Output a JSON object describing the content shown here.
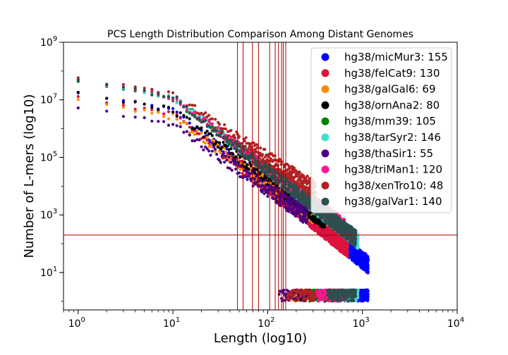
{
  "chart_data": {
    "type": "scatter",
    "title": "PCS Length Distribution Comparison Among Distant Genomes",
    "xlabel": "Length (log10)",
    "ylabel": "Number of L-mers (log10)",
    "xscale": "log",
    "yscale": "log",
    "xlim": [
      0.7,
      10000
    ],
    "ylim": [
      0.5,
      1000000000
    ],
    "x_ticks": [
      {
        "value": 1,
        "base": "10",
        "exp": "0"
      },
      {
        "value": 10,
        "base": "10",
        "exp": "1"
      },
      {
        "value": 100,
        "base": "10",
        "exp": "2"
      },
      {
        "value": 1000,
        "base": "10",
        "exp": "3"
      },
      {
        "value": 10000,
        "base": "10",
        "exp": "4"
      }
    ],
    "y_ticks": [
      {
        "value": 10,
        "base": "10",
        "exp": "1"
      },
      {
        "value": 1000,
        "base": "10",
        "exp": "3"
      },
      {
        "value": 100000,
        "base": "10",
        "exp": "5"
      },
      {
        "value": 10000000,
        "base": "10",
        "exp": "7"
      },
      {
        "value": 1000000000,
        "base": "10",
        "exp": "9"
      }
    ],
    "legend_position": "top-right",
    "threshold_line_color": "#b00000",
    "horizontal_threshold": 200,
    "series": [
      {
        "name": "hg38/micMur3: 155",
        "threshold": 155,
        "color": "#0000ff",
        "y1": 17000000.0,
        "slope_kink": 2.6,
        "tail_end": 1150,
        "scatter": 0.1
      },
      {
        "name": "hg38/felCat9: 130",
        "threshold": 130,
        "color": "#dc143c",
        "y1": 12000000.0,
        "slope_kink": 2.5,
        "tail_end": 700,
        "scatter": 0.12
      },
      {
        "name": "hg38/galGal6: 69",
        "threshold": 69,
        "color": "#ff8c00",
        "y1": 10000000.0,
        "slope_kink": 2.3,
        "tail_end": 300,
        "scatter": 0.12
      },
      {
        "name": "hg38/ornAna2: 80",
        "threshold": 80,
        "color": "#000000",
        "y1": 17000000.0,
        "slope_kink": 2.4,
        "tail_end": 400,
        "scatter": 0.12
      },
      {
        "name": "hg38/mm39: 105",
        "threshold": 105,
        "color": "#008000",
        "y1": 45000000.0,
        "slope_kink": 2.45,
        "tail_end": 550,
        "scatter": 0.1
      },
      {
        "name": "hg38/tarSyr2: 146",
        "threshold": 146,
        "color": "#40e0d0",
        "y1": 50000000.0,
        "slope_kink": 2.55,
        "tail_end": 900,
        "scatter": 0.1
      },
      {
        "name": "hg38/thaSir1: 55",
        "threshold": 55,
        "color": "#4b0082",
        "y1": 5500000.0,
        "slope_kink": 2.25,
        "tail_end": 260,
        "scatter": 0.13
      },
      {
        "name": "hg38/triMan1: 120",
        "threshold": 120,
        "color": "#ff1493",
        "y1": 50000000.0,
        "slope_kink": 2.5,
        "tail_end": 650,
        "scatter": 0.1
      },
      {
        "name": "hg38/xenTro10: 48",
        "threshold": 48,
        "color": "#b22222",
        "y1": 55000000.0,
        "slope_kink": 2.2,
        "tail_end": 320,
        "scatter": 0.14
      },
      {
        "name": "hg38/galVar1: 140",
        "threshold": 140,
        "color": "#2f4f4f",
        "y1": 50000000.0,
        "slope_kink": 2.55,
        "tail_end": 850,
        "scatter": 0.1
      }
    ]
  }
}
